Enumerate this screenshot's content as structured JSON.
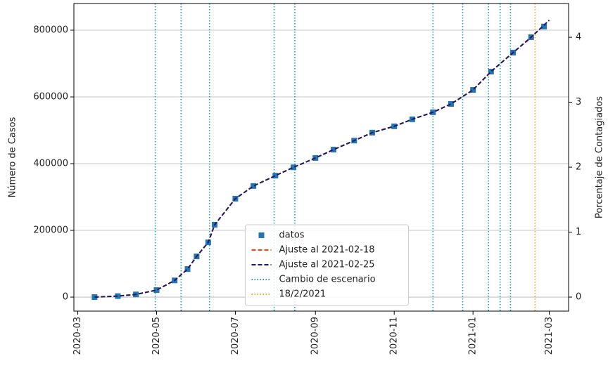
{
  "chart_data": {
    "type": "line",
    "ylabel": "Número de Casos",
    "y2label": "Porcentaje de Contagiados",
    "xlim": [
      "2020-02-27",
      "2021-03-16"
    ],
    "xticks": [
      {
        "value": "2020-03-01",
        "label": "2020-03"
      },
      {
        "value": "2020-05-01",
        "label": "2020-05"
      },
      {
        "value": "2020-07-01",
        "label": "2020-07"
      },
      {
        "value": "2020-09-01",
        "label": "2020-09"
      },
      {
        "value": "2020-11-01",
        "label": "2020-11"
      },
      {
        "value": "2021-01-01",
        "label": "2021-01"
      },
      {
        "value": "2021-03-01",
        "label": "2021-03"
      }
    ],
    "ylim": [
      -42000,
      880000
    ],
    "yticks": [
      0,
      200000,
      400000,
      600000,
      800000
    ],
    "y2lim": [
      -0.216,
      4.52
    ],
    "y2ticks": [
      0,
      1,
      2,
      3,
      4
    ],
    "grid": "y",
    "legend_loc": "lower center",
    "series": [
      {
        "name": "datos",
        "style": "scatter",
        "color": "#1f77b4",
        "x": [
          "2020-03-14",
          "2020-04-01",
          "2020-04-15",
          "2020-05-01",
          "2020-05-15",
          "2020-05-25",
          "2020-06-01",
          "2020-06-10",
          "2020-06-15",
          "2020-07-01",
          "2020-07-15",
          "2020-08-01",
          "2020-08-15",
          "2020-09-01",
          "2020-09-15",
          "2020-10-01",
          "2020-10-15",
          "2020-11-01",
          "2020-11-15",
          "2020-12-01",
          "2020-12-15",
          "2021-01-01",
          "2021-01-15",
          "2021-02-01",
          "2021-02-15",
          "2021-02-25"
        ],
        "values": [
          0,
          3000,
          8000,
          21000,
          50000,
          84000,
          122000,
          164000,
          217000,
          295000,
          333000,
          364000,
          389000,
          417000,
          442000,
          469000,
          493000,
          512000,
          533000,
          554000,
          579000,
          621000,
          676000,
          733000,
          779000,
          811000
        ]
      },
      {
        "name": "Ajuste al 2021-02-18",
        "style": "dashed",
        "color": "#ff4500",
        "x": [
          "2020-03-14",
          "2020-04-01",
          "2020-04-15",
          "2020-05-01",
          "2020-05-15",
          "2020-05-25",
          "2020-06-01",
          "2020-06-10",
          "2020-06-15",
          "2020-07-01",
          "2020-07-15",
          "2020-08-01",
          "2020-08-15",
          "2020-09-01",
          "2020-09-15",
          "2020-10-01",
          "2020-10-15",
          "2020-11-01",
          "2020-11-15",
          "2020-12-01",
          "2020-12-15",
          "2021-01-01",
          "2021-01-15",
          "2021-02-01",
          "2021-02-18"
        ],
        "values": [
          0,
          3000,
          8000,
          21000,
          50000,
          84000,
          122000,
          164000,
          217000,
          295000,
          333000,
          364000,
          389000,
          417000,
          442000,
          469000,
          493000,
          512000,
          533000,
          554000,
          579000,
          621000,
          676000,
          733000,
          787000
        ]
      },
      {
        "name": "Ajuste al 2021-02-25",
        "style": "dashed",
        "color": "#191970",
        "x": [
          "2020-03-14",
          "2020-04-01",
          "2020-04-15",
          "2020-05-01",
          "2020-05-15",
          "2020-05-25",
          "2020-06-01",
          "2020-06-10",
          "2020-06-15",
          "2020-07-01",
          "2020-07-15",
          "2020-08-01",
          "2020-08-15",
          "2020-09-01",
          "2020-09-15",
          "2020-10-01",
          "2020-10-15",
          "2020-11-01",
          "2020-11-15",
          "2020-12-01",
          "2020-12-15",
          "2021-01-01",
          "2021-01-15",
          "2021-02-01",
          "2021-02-15",
          "2021-03-01"
        ],
        "values": [
          0,
          3000,
          8000,
          21000,
          50000,
          84000,
          122000,
          164000,
          217000,
          295000,
          333000,
          364000,
          389000,
          417000,
          442000,
          469000,
          493000,
          512000,
          533000,
          554000,
          579000,
          621000,
          676000,
          733000,
          779000,
          830000
        ]
      }
    ],
    "vlines": [
      {
        "name": "Cambio de escenario",
        "color": "#17a2a2",
        "x": [
          "2020-04-30",
          "2020-05-20",
          "2020-06-11",
          "2020-07-31",
          "2020-08-16",
          "2020-12-01",
          "2020-12-24",
          "2021-01-13",
          "2021-01-22",
          "2021-01-30"
        ]
      },
      {
        "name": "18/2/2021",
        "color": "#ff9f1a",
        "x": [
          "2021-02-18"
        ]
      }
    ]
  }
}
